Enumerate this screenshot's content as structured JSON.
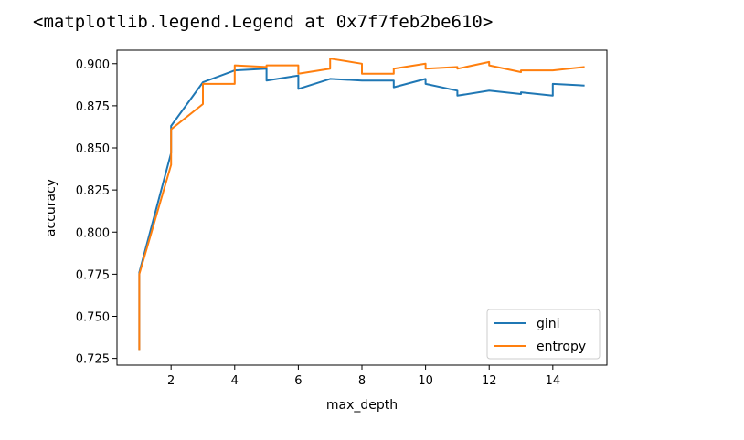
{
  "output_text": "<matplotlib.legend.Legend at 0x7f7feb2be610>",
  "chart_data": {
    "type": "line",
    "title": "",
    "xlabel": "max_depth",
    "ylabel": "accuracy",
    "xlim": [
      0.3,
      15.7
    ],
    "ylim": [
      0.721,
      0.908
    ],
    "xticks": [
      2,
      4,
      6,
      8,
      10,
      12,
      14
    ],
    "yticks": [
      0.725,
      0.75,
      0.775,
      0.8,
      0.825,
      0.85,
      0.875,
      0.9
    ],
    "ytick_labels": [
      "0.725",
      "0.750",
      "0.775",
      "0.800",
      "0.825",
      "0.850",
      "0.875",
      "0.900"
    ],
    "grid": false,
    "legend_position": "lower right",
    "series": [
      {
        "name": "gini",
        "color": "#1f77b4",
        "points": [
          [
            1,
            0.73
          ],
          [
            1,
            0.776
          ],
          [
            2,
            0.847
          ],
          [
            2,
            0.863
          ],
          [
            3,
            0.889
          ],
          [
            4,
            0.896
          ],
          [
            5,
            0.897
          ],
          [
            5,
            0.89
          ],
          [
            6,
            0.893
          ],
          [
            6,
            0.885
          ],
          [
            7,
            0.891
          ],
          [
            8,
            0.89
          ],
          [
            9,
            0.89
          ],
          [
            9,
            0.886
          ],
          [
            10,
            0.891
          ],
          [
            10,
            0.888
          ],
          [
            11,
            0.884
          ],
          [
            11,
            0.881
          ],
          [
            12,
            0.884
          ],
          [
            13,
            0.882
          ],
          [
            13,
            0.883
          ],
          [
            14,
            0.881
          ],
          [
            14,
            0.888
          ],
          [
            15,
            0.887
          ]
        ]
      },
      {
        "name": "entropy",
        "color": "#ff7f0e",
        "points": [
          [
            1,
            0.73
          ],
          [
            1,
            0.775
          ],
          [
            2,
            0.84
          ],
          [
            2,
            0.861
          ],
          [
            3,
            0.876
          ],
          [
            3,
            0.888
          ],
          [
            4,
            0.888
          ],
          [
            4,
            0.899
          ],
          [
            5,
            0.898
          ],
          [
            5,
            0.899
          ],
          [
            6,
            0.899
          ],
          [
            6,
            0.894
          ],
          [
            7,
            0.897
          ],
          [
            7,
            0.903
          ],
          [
            8,
            0.9
          ],
          [
            8,
            0.894
          ],
          [
            9,
            0.894
          ],
          [
            9,
            0.897
          ],
          [
            10,
            0.9
          ],
          [
            10,
            0.897
          ],
          [
            11,
            0.898
          ],
          [
            11,
            0.897
          ],
          [
            12,
            0.901
          ],
          [
            12,
            0.899
          ],
          [
            13,
            0.895
          ],
          [
            13,
            0.896
          ],
          [
            14,
            0.896
          ],
          [
            14,
            0.896
          ],
          [
            15,
            0.898
          ]
        ]
      }
    ]
  }
}
